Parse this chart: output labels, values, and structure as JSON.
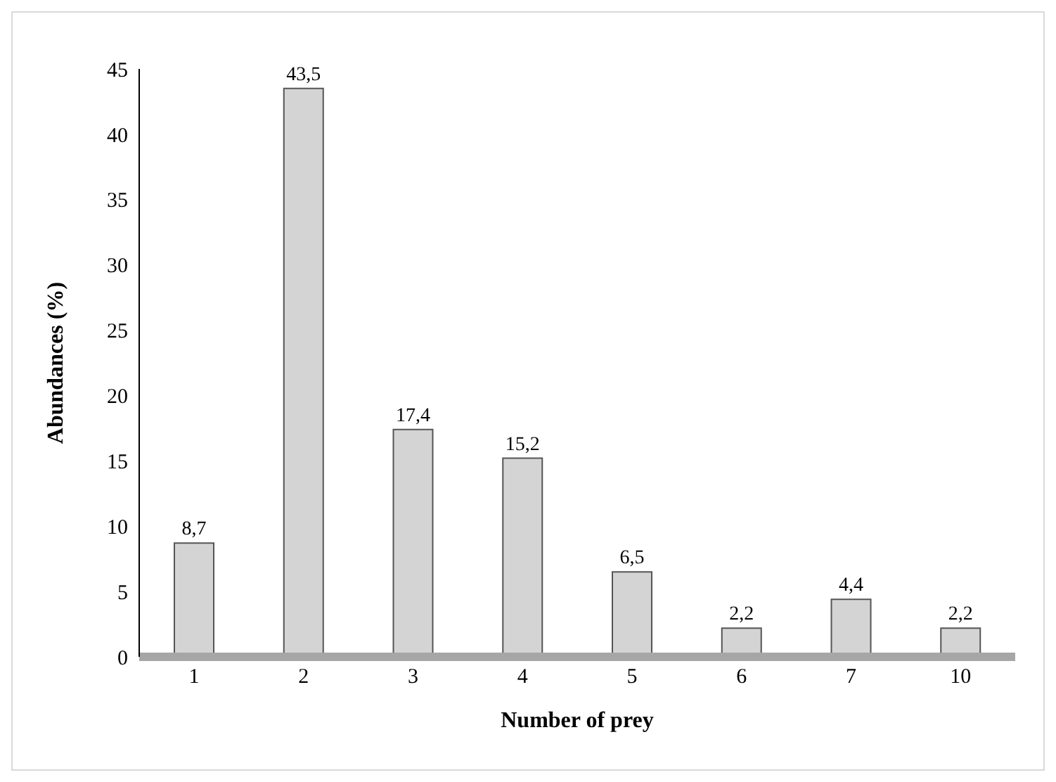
{
  "chart_data": {
    "type": "bar",
    "xlabel": "Number of prey",
    "ylabel": "Abundances (%)",
    "categories": [
      "1",
      "2",
      "3",
      "4",
      "5",
      "6",
      "7",
      "10"
    ],
    "values": [
      8.7,
      43.5,
      17.4,
      15.2,
      6.5,
      2.2,
      4.4,
      2.2
    ],
    "value_labels": [
      "8,7",
      "43,5",
      "17,4",
      "15,2",
      "6,5",
      "2,2",
      "4,4",
      "2,2"
    ],
    "color": "#d4d4d4",
    "ylim": [
      0,
      45
    ],
    "yticks": [
      0,
      5,
      10,
      15,
      20,
      25,
      30,
      35,
      40,
      45
    ],
    "grid": false,
    "legend": false
  }
}
